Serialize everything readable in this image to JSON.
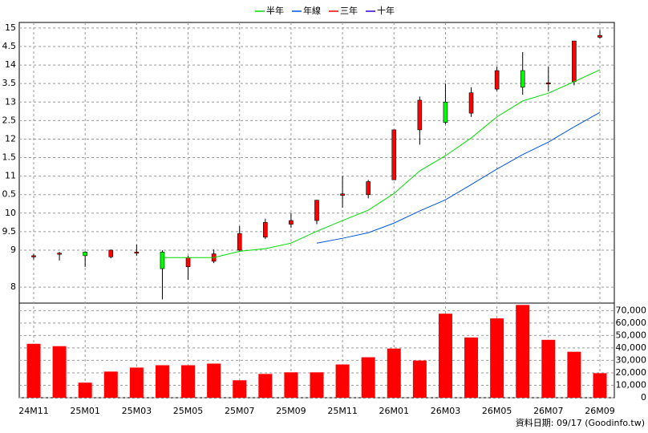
{
  "chart_data": {
    "type": "candlestick",
    "categories": [
      "24M11",
      null,
      "25M01",
      null,
      "25M03",
      null,
      "25M05",
      null,
      "25M07",
      null,
      "25M09",
      null,
      "25M11",
      null,
      "26M01",
      null,
      "26M03",
      null,
      "26M05",
      null,
      "26M07",
      null,
      "26M09"
    ],
    "open": [
      8.82,
      8.9,
      8.95,
      8.82,
      8.93,
      8.95,
      8.55,
      8.7,
      9.0,
      9.35,
      9.7,
      9.8,
      10.48,
      10.5,
      10.9,
      12.25,
      13.0,
      12.7,
      13.35,
      13.85,
      13.5,
      13.55,
      14.75
    ],
    "high": [
      8.9,
      8.95,
      8.97,
      9.02,
      9.15,
      9.0,
      8.85,
      9.02,
      9.65,
      9.85,
      10.0,
      10.35,
      11.0,
      10.9,
      12.25,
      13.15,
      13.5,
      13.4,
      13.95,
      14.35,
      13.95,
      14.65,
      14.95
    ],
    "low": [
      8.75,
      8.72,
      8.55,
      8.78,
      8.85,
      7.67,
      8.2,
      8.65,
      8.95,
      9.3,
      9.6,
      9.7,
      10.15,
      10.4,
      10.9,
      11.85,
      12.4,
      12.6,
      13.3,
      13.2,
      13.3,
      13.45,
      14.72
    ],
    "close": [
      8.85,
      8.92,
      8.85,
      9.0,
      8.95,
      8.5,
      8.8,
      8.9,
      9.45,
      9.75,
      9.8,
      10.35,
      10.52,
      10.85,
      12.25,
      13.05,
      12.45,
      13.25,
      13.85,
      13.4,
      13.52,
      14.65,
      14.8
    ],
    "up_color": "#ff0000",
    "down_color": "#00ff00",
    "ylim": [
      7.57,
      15.15
    ],
    "yticks": [
      8,
      {
        "value": 9,
        "label": "9"
      },
      {
        "value": 9.5,
        "label": "9.5"
      },
      10,
      {
        "value": 10.5,
        "label": "0.5"
      },
      11,
      {
        "value": 11.5,
        "label": "1.5"
      },
      12,
      {
        "value": 12.5,
        "label": "2.5"
      },
      13,
      {
        "value": 13.5,
        "label": "3.5"
      },
      14,
      {
        "value": 14.5,
        "label": "4.5"
      },
      15
    ],
    "grid": true,
    "series": [
      {
        "name": "半年",
        "color": "#00dd00",
        "values": [
          null,
          null,
          null,
          null,
          null,
          8.8,
          8.8,
          8.8,
          8.97,
          9.04,
          9.19,
          9.51,
          9.8,
          10.08,
          10.53,
          11.14,
          11.55,
          12.03,
          12.6,
          13.03,
          13.24,
          13.55,
          13.87
        ]
      },
      {
        "name": "年線",
        "color": "#0055dd",
        "values": [
          null,
          null,
          null,
          null,
          null,
          null,
          null,
          null,
          null,
          null,
          null,
          9.19,
          9.32,
          9.47,
          9.73,
          10.06,
          10.36,
          10.77,
          11.19,
          11.58,
          11.92,
          12.33,
          12.72
        ]
      },
      {
        "name": "三年",
        "color": "#ff0000",
        "values": [
          null,
          null,
          null,
          null,
          null,
          null,
          null,
          null,
          null,
          null,
          null,
          null,
          null,
          null,
          null,
          null,
          null,
          null,
          null,
          null,
          null,
          null,
          null
        ]
      },
      {
        "name": "十年",
        "color": "#3300cc",
        "values": [
          null,
          null,
          null,
          null,
          null,
          null,
          null,
          null,
          null,
          null,
          null,
          null,
          null,
          null,
          null,
          null,
          null,
          null,
          null,
          null,
          null,
          null,
          null
        ]
      }
    ],
    "volume": {
      "color": "#ff0000",
      "values": [
        43300,
        41400,
        12100,
        21000,
        24200,
        26100,
        26100,
        27400,
        14000,
        19100,
        20400,
        20400,
        26700,
        32500,
        39500,
        29900,
        67500,
        48400,
        63700,
        74500,
        46500,
        36900,
        19700
      ],
      "ylim": [
        0,
        76000
      ],
      "yticks": [
        0,
        {
          "value": 10000,
          "label": "10,000"
        },
        {
          "value": 20000,
          "label": "20,000"
        },
        {
          "value": 30000,
          "label": "30,000"
        },
        {
          "value": 40000,
          "label": "40,000"
        },
        {
          "value": 50000,
          "label": "50,000"
        },
        {
          "value": 60000,
          "label": "60,000"
        },
        {
          "value": 70000,
          "label": "70,000"
        }
      ]
    },
    "footer": "資料日期: 09/17 (Goodinfo.tw)"
  }
}
